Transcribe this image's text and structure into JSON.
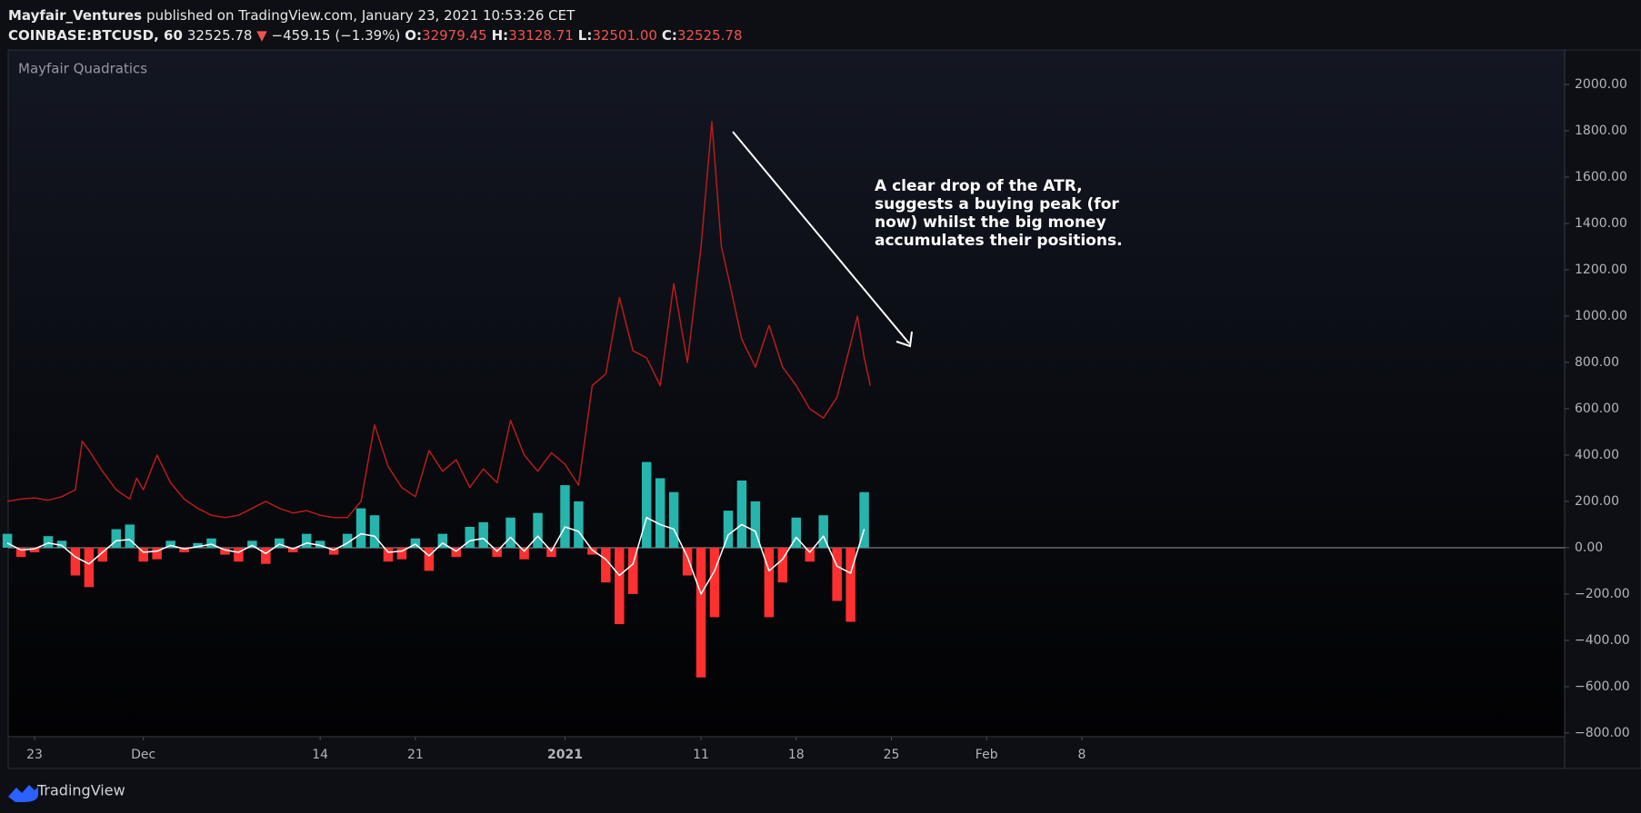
{
  "header": {
    "author": "Mayfair_Ventures",
    "published": "published on TradingView.com, January 23, 2021 10:53:26 CET"
  },
  "ticker": {
    "symbol": "COINBASE:BTCUSD, 60",
    "last": "32525.78",
    "change": "−459.15 (−1.39%)",
    "ohlc": [
      {
        "label": "O:",
        "value": "32979.45"
      },
      {
        "label": "H:",
        "value": "33128.71"
      },
      {
        "label": "L:",
        "value": "32501.00"
      },
      {
        "label": "C:",
        "value": "32525.78"
      }
    ]
  },
  "footer": {
    "brand": "TradingView"
  },
  "chart_data": {
    "type": "line",
    "title": "Mayfair Quadratics",
    "annotation": [
      "A clear drop of the ATR,",
      "suggests a buying peak (for",
      "now) whilst the big money",
      "accumulates their positions."
    ],
    "xlim": [
      -1.94,
      112.5
    ],
    "xticks": [
      {
        "value": 0,
        "label": "23"
      },
      {
        "value": 8,
        "label": "Dec"
      },
      {
        "value": 21,
        "label": "14"
      },
      {
        "value": 28,
        "label": "21"
      },
      {
        "value": 39,
        "label": "2021"
      },
      {
        "value": 49,
        "label": "11"
      },
      {
        "value": 56,
        "label": "18"
      },
      {
        "value": 63,
        "label": "25"
      },
      {
        "value": 70,
        "label": "Feb"
      },
      {
        "value": 77,
        "label": "8"
      }
    ],
    "ylim": [
      -816,
      2149
    ],
    "yticks": [
      {
        "value": 2000,
        "label": "2000.00"
      },
      {
        "value": 1800,
        "label": "1800.00"
      },
      {
        "value": 1600,
        "label": "1600.00"
      },
      {
        "value": 1400,
        "label": "1400.00"
      },
      {
        "value": 1200,
        "label": "1200.00"
      },
      {
        "value": 1000,
        "label": "1000.00"
      },
      {
        "value": 800,
        "label": "800.00"
      },
      {
        "value": 600,
        "label": "600.00"
      },
      {
        "value": 400,
        "label": "400.00"
      },
      {
        "value": 200,
        "label": "200.00"
      },
      {
        "value": 0,
        "label": "0.00"
      },
      {
        "value": -200,
        "label": "−200.00"
      },
      {
        "value": -400,
        "label": "−400.00"
      },
      {
        "value": -600,
        "label": "−600.00"
      },
      {
        "value": -800,
        "label": "−800.00"
      }
    ],
    "series": [
      {
        "type": "line",
        "color": "#b71c1c",
        "x": [
          -2,
          -1,
          0,
          1,
          2,
          3,
          3.5,
          4,
          5,
          6,
          7,
          7.5,
          8,
          9,
          10,
          11,
          12,
          13,
          14,
          15,
          16,
          17,
          18,
          19,
          20,
          21,
          22,
          23,
          24,
          25,
          26,
          27,
          28,
          29,
          30,
          31,
          32,
          33,
          34,
          35,
          36,
          37,
          38,
          39,
          40,
          41,
          42,
          43,
          44,
          45,
          46,
          47,
          48,
          49,
          49.8,
          50.5,
          51,
          52,
          53,
          54,
          55,
          56,
          57,
          58,
          59,
          60,
          60.5,
          61,
          61.45
        ],
        "values": [
          200,
          210,
          215,
          205,
          220,
          250,
          460,
          420,
          330,
          250,
          210,
          300,
          250,
          400,
          280,
          210,
          170,
          140,
          130,
          140,
          170,
          200,
          170,
          150,
          160,
          140,
          130,
          130,
          200,
          530,
          350,
          260,
          220,
          420,
          330,
          380,
          260,
          340,
          280,
          550,
          400,
          330,
          410,
          360,
          270,
          700,
          750,
          1080,
          850,
          820,
          700,
          1140,
          800,
          1300,
          1840,
          1300,
          1170,
          900,
          780,
          960,
          780,
          700,
          600,
          560,
          650,
          880,
          1000,
          820,
          700
        ]
      },
      {
        "type": "bar",
        "color": "#26b5ad",
        "negative_color": "#ff3030",
        "x": [
          -2,
          -1,
          0,
          1,
          2,
          3,
          4,
          5,
          6,
          7,
          8,
          9,
          10,
          11,
          12,
          13,
          14,
          15,
          16,
          17,
          18,
          19,
          20,
          21,
          22,
          23,
          24,
          25,
          26,
          27,
          28,
          29,
          30,
          31,
          32,
          33,
          34,
          35,
          36,
          37,
          38,
          39,
          40,
          41,
          42,
          43,
          44,
          45,
          46,
          47,
          48,
          49,
          50,
          51,
          52,
          53,
          54,
          55,
          56,
          57,
          58,
          59,
          60,
          61
        ],
        "values": [
          60,
          -40,
          -20,
          50,
          30,
          -120,
          -170,
          -60,
          80,
          100,
          -60,
          -50,
          30,
          -20,
          20,
          40,
          -30,
          -60,
          30,
          -70,
          40,
          -20,
          60,
          30,
          -30,
          60,
          170,
          140,
          -60,
          -50,
          40,
          -100,
          60,
          -40,
          90,
          110,
          -40,
          130,
          -50,
          150,
          -40,
          270,
          200,
          -30,
          -150,
          -330,
          -200,
          370,
          300,
          240,
          -120,
          -560,
          -300,
          160,
          290,
          200,
          -300,
          -150,
          130,
          -60,
          140,
          -230,
          -320,
          240
        ]
      },
      {
        "type": "line",
        "color": "#ffffff",
        "x": [
          -2,
          -1,
          0,
          1,
          2,
          3,
          4,
          5,
          6,
          7,
          8,
          9,
          10,
          11,
          12,
          13,
          14,
          15,
          16,
          17,
          18,
          19,
          20,
          21,
          22,
          23,
          24,
          25,
          26,
          27,
          28,
          29,
          30,
          31,
          32,
          33,
          34,
          35,
          36,
          37,
          38,
          39,
          40,
          41,
          42,
          43,
          44,
          45,
          46,
          47,
          48,
          49,
          50,
          51,
          52,
          53,
          54,
          55,
          56,
          57,
          58,
          59,
          60,
          61
        ],
        "values": [
          20,
          -10,
          -5,
          20,
          10,
          -40,
          -70,
          -20,
          30,
          35,
          -20,
          -15,
          10,
          -5,
          5,
          15,
          -10,
          -20,
          10,
          -25,
          15,
          -5,
          20,
          10,
          -10,
          20,
          60,
          50,
          -20,
          -15,
          15,
          -35,
          20,
          -15,
          30,
          40,
          -15,
          45,
          -15,
          50,
          -15,
          90,
          70,
          -10,
          -50,
          -120,
          -70,
          130,
          100,
          80,
          -40,
          -200,
          -100,
          55,
          100,
          70,
          -100,
          -50,
          45,
          -20,
          50,
          -80,
          -110,
          80
        ]
      }
    ]
  }
}
